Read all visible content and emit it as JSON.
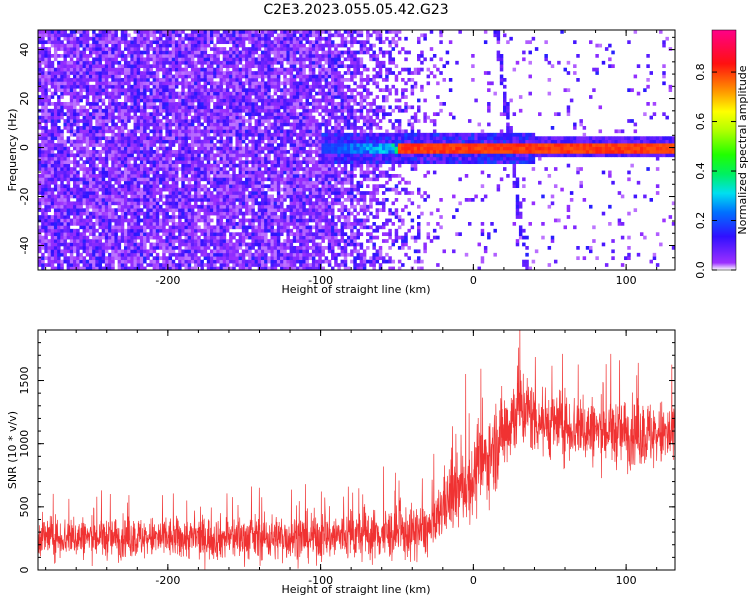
{
  "title": "C2E3.2023.055.05.42.G23",
  "chart_data": [
    {
      "type": "heatmap",
      "xlabel": "Height of straight line (km)",
      "ylabel": "Frequency (Hz)",
      "xlim": [
        -285,
        132
      ],
      "ylim": [
        -50,
        48
      ],
      "x_ticks": [
        -200,
        -100,
        0,
        100
      ],
      "y_ticks": [
        -40,
        -20,
        0,
        20,
        40
      ],
      "colorbar": {
        "label": "Normalized spectral amplitude",
        "range": [
          0.0,
          0.97
        ],
        "ticks": [
          0.0,
          0.2,
          0.4,
          0.6,
          0.8
        ],
        "colormap": "rainbow (violet-blue-cyan-green-yellow-orange-red-magenta)"
      },
      "signal_line": {
        "frequency_hz": 0,
        "x_start_km": -50,
        "x_end_km": 132,
        "amplitude": 0.85
      },
      "drift_line": {
        "x_start_km": 15,
        "x_end_km": 35,
        "freq_start_hz": 48,
        "freq_end_hz": -50
      },
      "noise_region": {
        "dense_until_km": -100,
        "fades_out_at_km": -20
      }
    },
    {
      "type": "line",
      "xlabel": "Height of straight line (km)",
      "ylabel": "SNR (10 * v/v)",
      "xlim": [
        -285,
        132
      ],
      "ylim": [
        0,
        1900
      ],
      "x_ticks": [
        -200,
        -100,
        0,
        100
      ],
      "y_ticks": [
        0,
        500,
        1000,
        1500
      ],
      "color": "#f03232",
      "profile": [
        {
          "x": -285,
          "mean": 260,
          "spread": 200
        },
        {
          "x": -200,
          "mean": 250,
          "spread": 200
        },
        {
          "x": -110,
          "mean": 260,
          "spread": 230
        },
        {
          "x": -40,
          "mean": 290,
          "spread": 260
        },
        {
          "x": -25,
          "mean": 330,
          "spread": 250
        },
        {
          "x": -20,
          "mean": 520,
          "spread": 320
        },
        {
          "x": 0,
          "mean": 720,
          "spread": 380
        },
        {
          "x": 15,
          "mean": 1000,
          "spread": 420
        },
        {
          "x": 30,
          "mean": 1300,
          "spread": 420
        },
        {
          "x": 45,
          "mean": 1170,
          "spread": 330
        },
        {
          "x": 80,
          "mean": 1100,
          "spread": 330
        },
        {
          "x": 132,
          "mean": 1060,
          "spread": 330
        }
      ]
    }
  ]
}
